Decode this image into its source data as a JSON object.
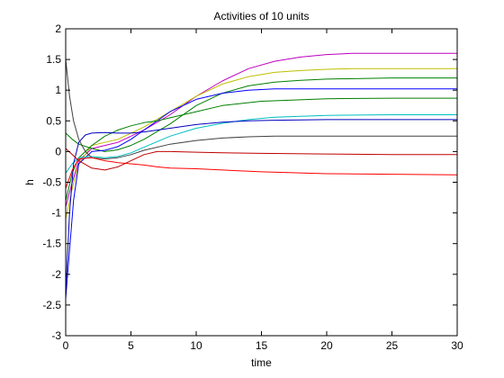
{
  "chart_data": {
    "type": "line",
    "title": "Activities of 10 units",
    "xlabel": "time",
    "ylabel": "h",
    "xlim": [
      0,
      30
    ],
    "ylim": [
      -3,
      2
    ],
    "xticks": [
      0,
      5,
      10,
      15,
      20,
      25,
      30
    ],
    "yticks": [
      -3,
      -2.5,
      -2,
      -1.5,
      -1,
      -0.5,
      0,
      0.5,
      1,
      1.5,
      2
    ],
    "xtick_labels": [
      "0",
      "5",
      "10",
      "15",
      "20",
      "25",
      "30"
    ],
    "ytick_labels": [
      "-3",
      "-2.5",
      "-2",
      "-1.5",
      "-1",
      "-0.5",
      "0",
      "0.5",
      "1",
      "1.5",
      "2"
    ],
    "grid": false,
    "series": [
      {
        "color": "#bf00bf",
        "x": [
          0,
          0.5,
          1,
          2,
          3,
          4,
          5,
          6,
          8,
          10,
          12,
          14,
          16,
          18,
          20,
          22,
          25,
          30
        ],
        "y": [
          -0.9,
          -0.5,
          -0.15,
          0.05,
          0.1,
          0.15,
          0.25,
          0.35,
          0.6,
          0.9,
          1.15,
          1.35,
          1.47,
          1.54,
          1.58,
          1.6,
          1.6,
          1.6
        ]
      },
      {
        "color": "#bfbf00",
        "x": [
          0,
          0.5,
          1,
          2,
          3,
          4,
          5,
          6,
          8,
          10,
          12,
          14,
          16,
          18,
          20,
          22,
          25,
          30
        ],
        "y": [
          -1.1,
          -0.6,
          -0.2,
          0.1,
          0.15,
          0.2,
          0.3,
          0.4,
          0.65,
          0.9,
          1.1,
          1.22,
          1.29,
          1.32,
          1.34,
          1.35,
          1.35,
          1.35
        ]
      },
      {
        "color": "#008000",
        "x": [
          0,
          0.5,
          1,
          2,
          3,
          4,
          5,
          6,
          8,
          10,
          12,
          14,
          16,
          18,
          20,
          25,
          30
        ],
        "y": [
          0.3,
          0.2,
          0.12,
          0.05,
          0.0,
          0.03,
          0.1,
          0.2,
          0.45,
          0.75,
          0.95,
          1.07,
          1.13,
          1.16,
          1.18,
          1.2,
          1.2
        ]
      },
      {
        "color": "#0000ff",
        "x": [
          0,
          0.3,
          0.6,
          1,
          2,
          3,
          4,
          5,
          6,
          8,
          10,
          12,
          14,
          16,
          20,
          25,
          30
        ],
        "y": [
          -2.4,
          -1.6,
          -0.8,
          -0.2,
          0.0,
          0.02,
          0.08,
          0.2,
          0.35,
          0.65,
          0.85,
          0.95,
          1.0,
          1.02,
          1.02,
          1.02,
          1.02
        ]
      },
      {
        "color": "#007f00",
        "x": [
          0,
          0.5,
          1,
          2,
          3,
          4,
          5,
          6,
          7,
          8,
          10,
          12,
          15,
          20,
          25,
          30
        ],
        "y": [
          -0.8,
          -0.35,
          -0.1,
          0.1,
          0.25,
          0.35,
          0.42,
          0.47,
          0.5,
          0.55,
          0.65,
          0.75,
          0.82,
          0.86,
          0.87,
          0.87
        ]
      },
      {
        "color": "#00bfbf",
        "x": [
          0,
          0.5,
          1,
          2,
          3,
          4,
          5,
          6,
          8,
          10,
          12,
          14,
          16,
          20,
          25,
          30
        ],
        "y": [
          -0.35,
          -0.2,
          -0.1,
          -0.08,
          -0.1,
          -0.08,
          -0.02,
          0.07,
          0.25,
          0.38,
          0.46,
          0.52,
          0.56,
          0.59,
          0.6,
          0.6
        ]
      },
      {
        "color": "#0000bf",
        "x": [
          0,
          0.3,
          0.6,
          1,
          1.5,
          2,
          3,
          4,
          5,
          6,
          8,
          10,
          12,
          14,
          16,
          20,
          25,
          30
        ],
        "y": [
          -2.3,
          -1.0,
          -0.2,
          0.15,
          0.27,
          0.3,
          0.31,
          0.3,
          0.3,
          0.32,
          0.38,
          0.44,
          0.48,
          0.5,
          0.51,
          0.52,
          0.52,
          0.52
        ]
      },
      {
        "color": "#404040",
        "x": [
          0,
          0.3,
          0.6,
          1,
          1.5,
          2,
          3,
          4,
          5,
          6,
          8,
          10,
          12,
          14,
          16,
          20,
          25,
          30
        ],
        "y": [
          1.5,
          0.9,
          0.5,
          0.2,
          0.0,
          -0.1,
          -0.12,
          -0.1,
          -0.05,
          0.02,
          0.12,
          0.18,
          0.22,
          0.24,
          0.25,
          0.25,
          0.25,
          0.25
        ]
      },
      {
        "color": "#ff0000",
        "x": [
          0,
          0.5,
          1,
          2,
          3,
          4,
          5,
          6,
          7,
          8,
          10,
          12,
          15,
          20,
          25,
          30
        ],
        "y": [
          -0.6,
          -0.3,
          -0.12,
          -0.1,
          -0.15,
          -0.18,
          -0.2,
          -0.22,
          -0.25,
          -0.27,
          -0.28,
          -0.3,
          -0.33,
          -0.36,
          -0.37,
          -0.38
        ]
      },
      {
        "color": "#bf0000",
        "x": [
          0,
          0.5,
          1,
          2,
          3,
          4,
          5,
          6,
          7,
          8,
          10,
          12,
          15,
          20,
          25,
          30
        ],
        "y": [
          0.05,
          -0.05,
          -0.15,
          -0.27,
          -0.3,
          -0.25,
          -0.15,
          -0.05,
          0.0,
          0.0,
          -0.01,
          -0.02,
          -0.03,
          -0.04,
          -0.05,
          -0.05
        ]
      }
    ]
  }
}
